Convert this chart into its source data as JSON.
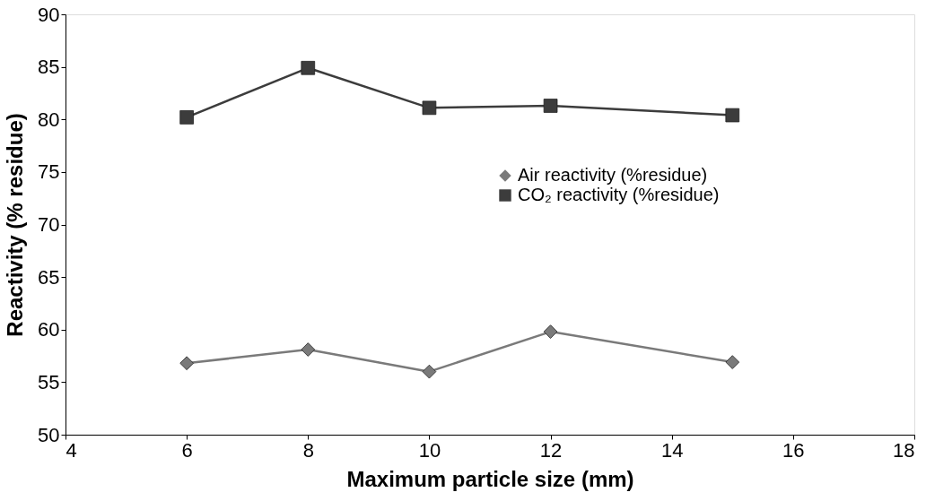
{
  "chart_data": {
    "type": "line",
    "xlabel": "Maximum particle size (mm)",
    "ylabel": "Reactivity (% residue)",
    "x": [
      6,
      8,
      10,
      12,
      15
    ],
    "series": [
      {
        "name": "Air reactivity (%residue)",
        "color": "#7a7a7a",
        "marker": "diamond",
        "values": [
          56.8,
          58.1,
          56.0,
          59.8,
          56.9
        ]
      },
      {
        "name": "CO₂ reactivity (%residue)",
        "color": "#3c3c3c",
        "marker": "square",
        "values": [
          80.2,
          84.9,
          81.1,
          81.3,
          80.4
        ]
      }
    ],
    "xlim": [
      4,
      18
    ],
    "xticks": [
      4,
      6,
      8,
      10,
      12,
      14,
      16,
      18
    ],
    "ylim": [
      50,
      90
    ],
    "yticks": [
      50,
      55,
      60,
      65,
      70,
      75,
      80,
      85,
      90
    ],
    "grid": false,
    "legend": "right",
    "line_style": "solid"
  }
}
